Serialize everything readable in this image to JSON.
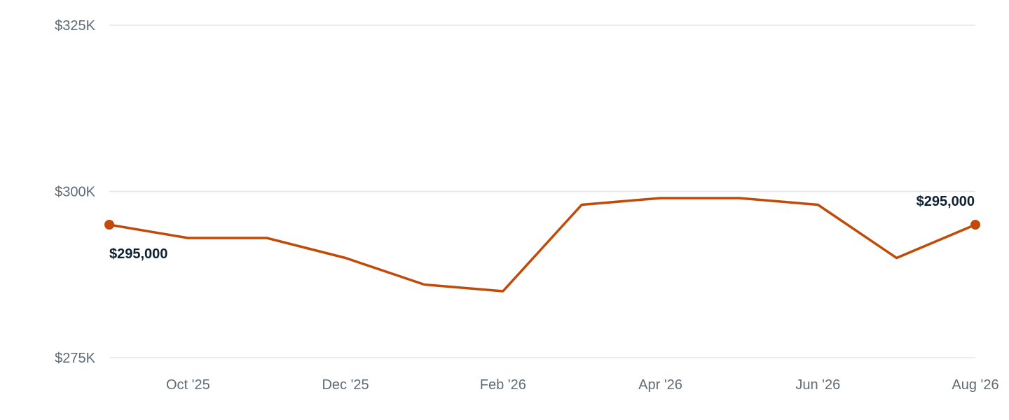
{
  "chart_data": {
    "type": "line",
    "title": "",
    "xlabel": "",
    "ylabel": "",
    "ylim": [
      275000,
      325000
    ],
    "y_ticks": [
      {
        "value": 325000,
        "label": "$325K"
      },
      {
        "value": 300000,
        "label": "$300K"
      },
      {
        "value": 275000,
        "label": "$275K"
      }
    ],
    "x": [
      "Sep '25",
      "Oct '25",
      "Nov '25",
      "Dec '25",
      "Jan '26",
      "Feb '26",
      "Mar '26",
      "Apr '26",
      "May '26",
      "Jun '26",
      "Jul '26",
      "Aug '26"
    ],
    "x_ticks": [
      {
        "index": 1,
        "label": "Oct '25"
      },
      {
        "index": 3,
        "label": "Dec '25"
      },
      {
        "index": 5,
        "label": "Feb '26"
      },
      {
        "index": 7,
        "label": "Apr '26"
      },
      {
        "index": 9,
        "label": "Jun '26"
      },
      {
        "index": 11,
        "label": "Aug '26"
      }
    ],
    "series": [
      {
        "values": [
          295000,
          293000,
          293000,
          290000,
          286000,
          285000,
          298000,
          299000,
          299000,
          298000,
          290000,
          295000
        ],
        "color": "#c14a09"
      }
    ],
    "annotations": [
      {
        "index": 0,
        "label": "$295,000",
        "placement": "below"
      },
      {
        "index": 11,
        "label": "$295,000",
        "placement": "above"
      }
    ],
    "grid": true,
    "legend": "none"
  }
}
